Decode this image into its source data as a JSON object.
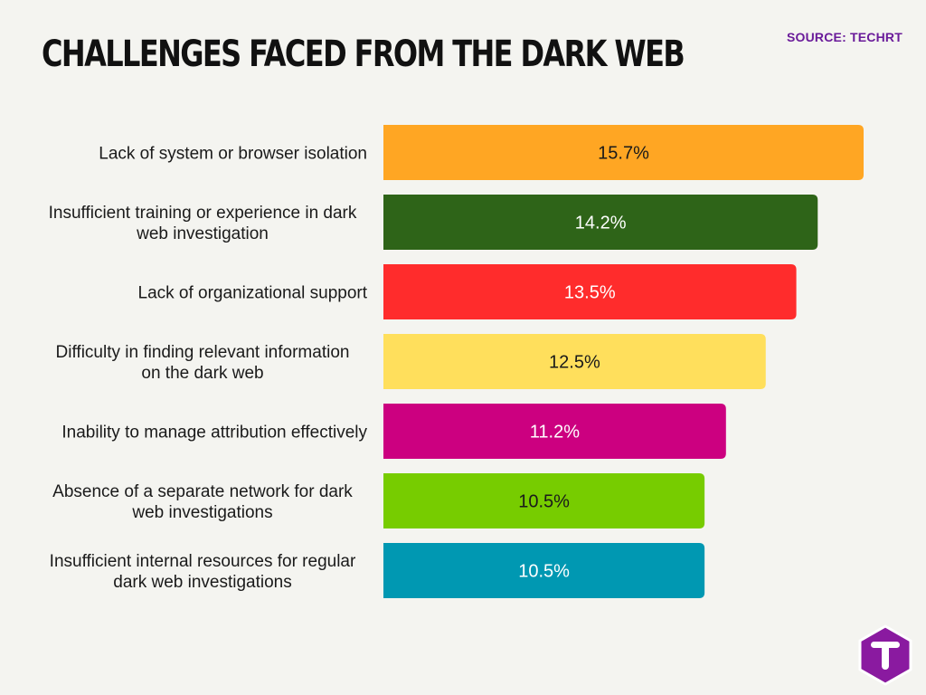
{
  "title": "CHALLENGES FACED FROM THE DARK WEB",
  "source": "SOURCE: TECHRT",
  "logo_icon": "techrt-t-hexagon-logo",
  "colors": {
    "background": "#f4f4f0",
    "logo": "#8a1aa0",
    "source_text": "#6a1b9a"
  },
  "chart_data": {
    "type": "bar",
    "orientation": "horizontal",
    "categories": [
      "Lack of system or browser isolation",
      "Insufficient training or experience in dark web investigation",
      "Lack of organizational support",
      "Difficulty in finding relevant information on the dark web",
      "Inability to manage attribution effectively",
      "Absence of a separate network for dark web investigations",
      "Insufficient internal resources for regular dark web investigations"
    ],
    "category_lines": [
      [
        "Lack of system or browser isolation"
      ],
      [
        "Insufficient training or experience in dark",
        "web investigation"
      ],
      [
        "Lack of organizational support"
      ],
      [
        "Difficulty in finding relevant information",
        "on the dark web"
      ],
      [
        "Inability to manage attribution effectively"
      ],
      [
        "Absence of a separate network for dark",
        "web investigations"
      ],
      [
        "Insufficient internal resources for regular",
        "dark web investigations"
      ]
    ],
    "values": [
      15.7,
      14.2,
      13.5,
      12.5,
      11.2,
      10.5,
      10.5
    ],
    "value_labels": [
      "15.7%",
      "14.2%",
      "13.5%",
      "12.5%",
      "11.2%",
      "10.5%",
      "10.5%"
    ],
    "bar_colors": [
      "#ffa623",
      "#2e6418",
      "#ff2c2c",
      "#ffdf5c",
      "#cc0080",
      "#77cc00",
      "#0098b2"
    ],
    "label_colors": [
      "#1a1a1a",
      "#ffffff",
      "#ffffff",
      "#1a1a1a",
      "#ffffff",
      "#1a1a1a",
      "#ffffff"
    ],
    "title": "CHALLENGES FACED FROM THE DARK WEB",
    "xlabel": "",
    "ylabel": "",
    "grid": false,
    "legend": "none"
  }
}
